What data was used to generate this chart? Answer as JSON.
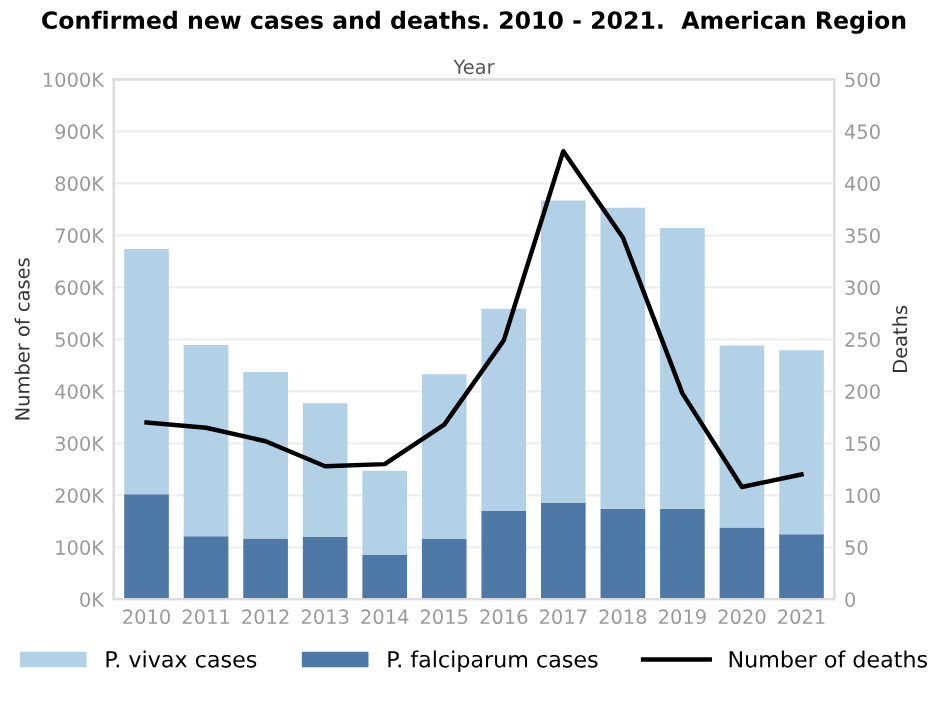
{
  "chart_data": {
    "type": "bar",
    "title": "Confirmed new cases and deaths. 2010 - 2021.  American Region",
    "xlabel": "Year",
    "ylabel": "Number of cases",
    "y2label": "Deaths",
    "categories": [
      "2010",
      "2011",
      "2012",
      "2013",
      "2014",
      "2015",
      "2016",
      "2017",
      "2018",
      "2019",
      "2020",
      "2021"
    ],
    "stacked": true,
    "series": [
      {
        "name": "P. falciparum cases",
        "color": "#4e79a7",
        "values": [
          202000,
          121000,
          117000,
          120000,
          85000,
          116000,
          170000,
          185000,
          174000,
          174000,
          138000,
          125000
        ]
      },
      {
        "name": "P. vivax cases",
        "color": "#b3d1e6",
        "values": [
          472000,
          368000,
          320000,
          257000,
          162000,
          317000,
          389000,
          582000,
          579000,
          540000,
          350000,
          354000
        ]
      },
      {
        "name": "Number of deaths",
        "type": "line",
        "axis": "y2",
        "color": "#000000",
        "values": [
          170,
          165,
          152,
          128,
          130,
          168,
          249,
          431,
          348,
          198,
          108,
          120
        ]
      }
    ],
    "ylim": [
      0,
      1000000
    ],
    "yticks": [
      {
        "value": 0,
        "label": "0K"
      },
      {
        "value": 100000,
        "label": "100K"
      },
      {
        "value": 200000,
        "label": "200K"
      },
      {
        "value": 300000,
        "label": "300K"
      },
      {
        "value": 400000,
        "label": "400K"
      },
      {
        "value": 500000,
        "label": "500K"
      },
      {
        "value": 600000,
        "label": "600K"
      },
      {
        "value": 700000,
        "label": "700K"
      },
      {
        "value": 800000,
        "label": "800K"
      },
      {
        "value": 900000,
        "label": "900K"
      },
      {
        "value": 1000000,
        "label": "1000K"
      }
    ],
    "y2lim": [
      0,
      500
    ],
    "y2ticks": [
      0,
      50,
      100,
      150,
      200,
      250,
      300,
      350,
      400,
      450,
      500
    ],
    "grid": "y",
    "legend": "bottom"
  }
}
